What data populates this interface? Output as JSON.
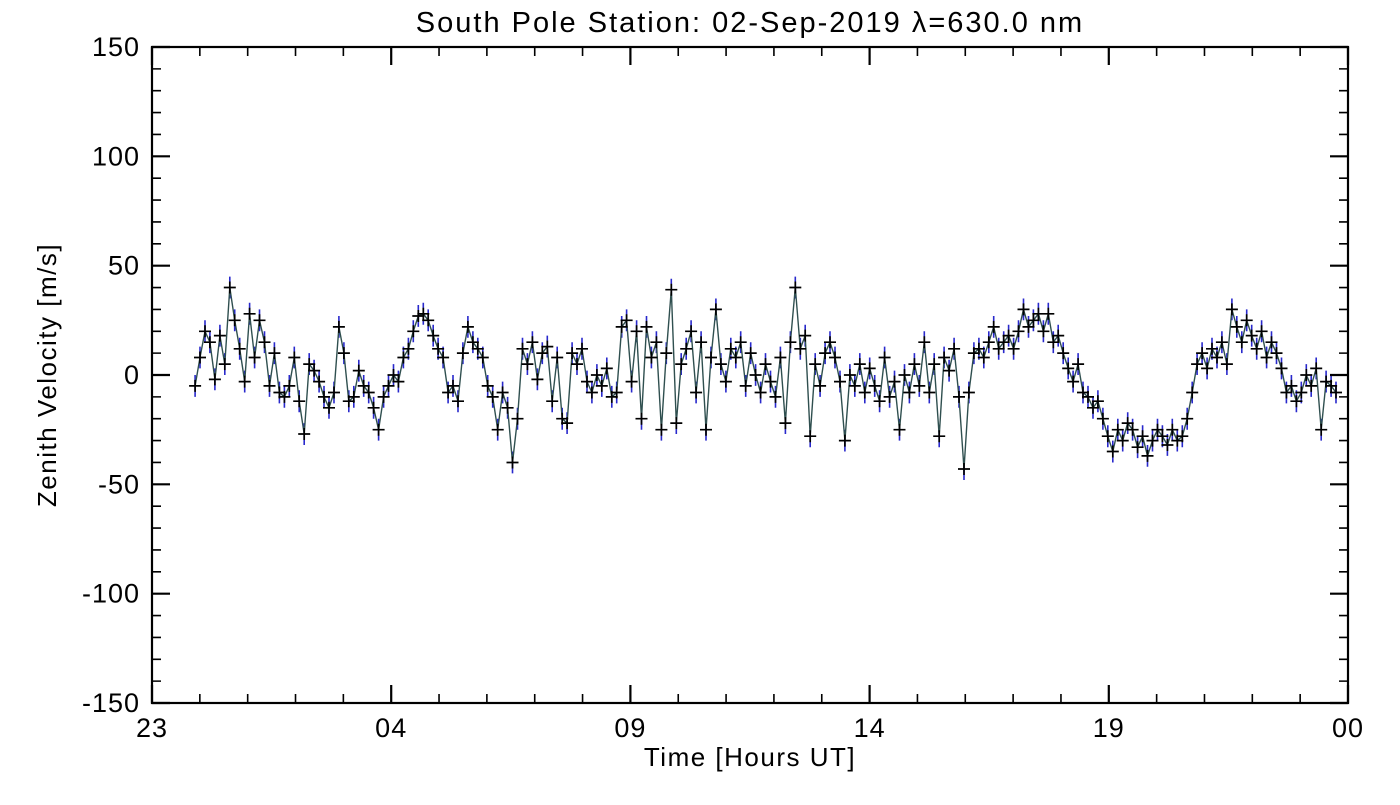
{
  "chart_data": {
    "type": "line",
    "title": "South Pole Station: 02-Sep-2019 λ=630.0 nm",
    "xlabel": "Time [Hours UT]",
    "ylabel": "Zenith Velocity [m/s]",
    "xlim": [
      23,
      48
    ],
    "ylim": [
      -150,
      150
    ],
    "xtick_values": [
      23,
      28,
      33,
      38,
      43,
      48
    ],
    "xtick_labels": [
      "23",
      "04",
      "09",
      "14",
      "19",
      "00"
    ],
    "x_minor_step": 1,
    "ytick_values": [
      -150,
      -100,
      -50,
      0,
      50,
      100,
      150
    ],
    "ytick_labels": [
      "-150",
      "-100",
      "-50",
      "0",
      "50",
      "100",
      "150"
    ],
    "y_minor_step": 10,
    "grid": false,
    "legend": "none",
    "x_start": 23.9,
    "x_end": 47.75,
    "error_halfwidth": 5,
    "colors": {
      "line": "#2f4f4f",
      "marker": "#000000",
      "error_bar": "#2929cc",
      "axis": "#000000",
      "background": "#ffffff"
    },
    "y": [
      -5,
      8,
      20,
      15,
      -2,
      18,
      5,
      40,
      25,
      12,
      -3,
      28,
      8,
      25,
      15,
      -5,
      10,
      -8,
      -10,
      -5,
      8,
      -12,
      -27,
      5,
      2,
      -3,
      -10,
      -15,
      -8,
      22,
      10,
      -12,
      -10,
      2,
      -5,
      -8,
      -15,
      -25,
      -10,
      -5,
      0,
      -3,
      8,
      12,
      20,
      27,
      28,
      25,
      18,
      12,
      8,
      -8,
      -5,
      -12,
      10,
      22,
      15,
      12,
      8,
      -5,
      -10,
      -25,
      -8,
      -15,
      -40,
      -20,
      12,
      5,
      15,
      -2,
      10,
      13,
      -12,
      8,
      -20,
      -22,
      10,
      5,
      12,
      -3,
      -8,
      0,
      -5,
      3,
      -10,
      -8,
      22,
      25,
      -3,
      20,
      -20,
      22,
      8,
      15,
      -25,
      10,
      39,
      -22,
      5,
      12,
      20,
      -8,
      15,
      -25,
      8,
      30,
      5,
      -3,
      12,
      8,
      15,
      -5,
      10,
      0,
      -8,
      5,
      -3,
      -10,
      8,
      -22,
      15,
      40,
      12,
      18,
      -28,
      5,
      -5,
      10,
      15,
      8,
      -3,
      -30,
      0,
      -5,
      5,
      -8,
      3,
      -5,
      -12,
      8,
      -10,
      -3,
      -25,
      0,
      -8,
      5,
      -5,
      15,
      -8,
      5,
      -28,
      8,
      2,
      12,
      -10,
      -43,
      -8,
      10,
      12,
      8,
      15,
      22,
      12,
      15,
      18,
      12,
      20,
      30,
      22,
      25,
      28,
      20,
      28,
      15,
      18,
      10,
      3,
      -3,
      5,
      -8,
      -10,
      -15,
      -12,
      -20,
      -28,
      -35,
      -25,
      -30,
      -22,
      -25,
      -33,
      -28,
      -37,
      -30,
      -25,
      -28,
      -32,
      -25,
      -30,
      -28,
      -20,
      -8,
      5,
      10,
      3,
      12,
      8,
      15,
      5,
      30,
      22,
      15,
      25,
      18,
      12,
      20,
      8,
      15,
      10,
      3,
      -8,
      -5,
      -12,
      -8,
      0,
      -5,
      3,
      -25,
      -3,
      -5,
      -8
    ]
  }
}
